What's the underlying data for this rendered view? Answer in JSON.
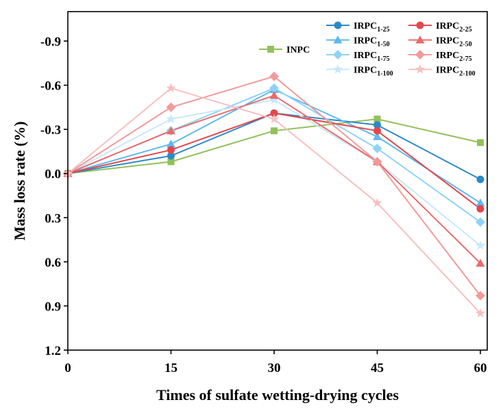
{
  "chart_data": {
    "type": "line",
    "title": "",
    "xlabel": "Times of sulfate wetting-drying cycles",
    "ylabel": "Mass loss rate (%)",
    "x": [
      0,
      15,
      30,
      45,
      60
    ],
    "x_ticks": [
      "0",
      "15",
      "30",
      "45",
      "60"
    ],
    "xlim": [
      0,
      61
    ],
    "ylim": [
      -1.1,
      1.2
    ],
    "y_axis_inverted": true,
    "y_ticks": [
      -0.9,
      -0.6,
      -0.3,
      0.0,
      0.3,
      0.6,
      0.9,
      1.2
    ],
    "y_tick_labels": [
      "-0.9",
      "-0.6",
      "-0.3",
      "0.0",
      "0.3",
      "0.6",
      "0.9",
      "1.2"
    ],
    "grid": false,
    "legend_position": "top-right",
    "series": [
      {
        "name": "INPC",
        "base": "INPC",
        "sub": "",
        "color": "#92c05a",
        "marker": "square",
        "values": [
          0.0,
          -0.08,
          -0.29,
          -0.37,
          -0.21
        ]
      },
      {
        "name": "IRPC1-25",
        "base": "IRPC",
        "sub": "1-25",
        "color": "#2b8ac5",
        "marker": "circle",
        "values": [
          0.0,
          -0.12,
          -0.41,
          -0.33,
          0.04
        ]
      },
      {
        "name": "IRPC1-50",
        "base": "IRPC",
        "sub": "1-50",
        "color": "#5cb9f0",
        "marker": "triangle",
        "values": [
          0.0,
          -0.2,
          -0.57,
          -0.25,
          0.2
        ]
      },
      {
        "name": "IRPC1-75",
        "base": "IRPC",
        "sub": "1-75",
        "color": "#8fd3f8",
        "marker": "diamond",
        "values": [
          0.0,
          -0.29,
          -0.58,
          -0.17,
          0.33
        ]
      },
      {
        "name": "IRPC1-100",
        "base": "IRPC",
        "sub": "1-100",
        "color": "#c8e8fb",
        "marker": "star",
        "values": [
          0.0,
          -0.37,
          -0.5,
          -0.08,
          0.49
        ]
      },
      {
        "name": "IRPC2-25",
        "base": "IRPC",
        "sub": "2-25",
        "color": "#e2474c",
        "marker": "circle",
        "values": [
          0.0,
          -0.16,
          -0.41,
          -0.29,
          0.24
        ]
      },
      {
        "name": "IRPC2-50",
        "base": "IRPC",
        "sub": "2-50",
        "color": "#ec6a6a",
        "marker": "triangle",
        "values": [
          0.0,
          -0.29,
          -0.53,
          -0.08,
          0.61
        ]
      },
      {
        "name": "IRPC2-75",
        "base": "IRPC",
        "sub": "2-75",
        "color": "#f29a9a",
        "marker": "diamond",
        "values": [
          0.0,
          -0.45,
          -0.66,
          -0.08,
          0.83
        ]
      },
      {
        "name": "IRPC2-100",
        "base": "IRPC",
        "sub": "2-100",
        "color": "#f7c0c0",
        "marker": "star",
        "values": [
          0.0,
          -0.58,
          -0.37,
          0.2,
          0.95
        ]
      }
    ]
  }
}
